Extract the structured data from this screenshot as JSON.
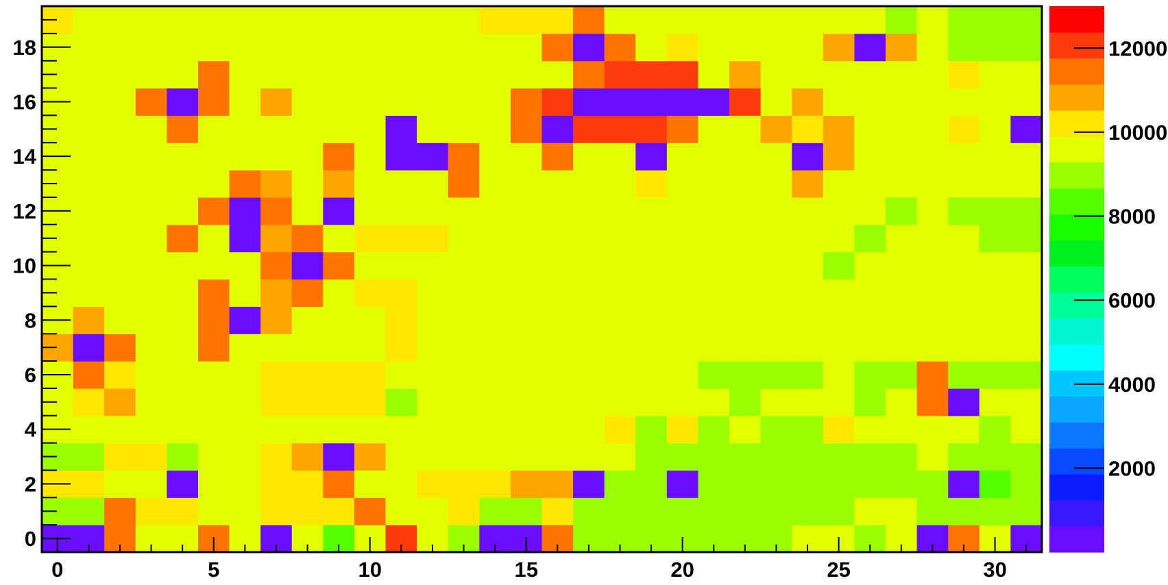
{
  "chart_data": {
    "type": "heatmap",
    "title": "",
    "xlabel": "",
    "ylabel": "",
    "xlim": [
      -0.5,
      31.5
    ],
    "ylim": [
      -0.5,
      19.5
    ],
    "x_ticks": [
      0,
      5,
      10,
      15,
      20,
      25,
      30
    ],
    "y_ticks": [
      0,
      2,
      4,
      6,
      8,
      10,
      12,
      14,
      16,
      18
    ],
    "colorbar": {
      "range": [
        0,
        13000
      ],
      "ticks": [
        2000,
        4000,
        6000,
        8000,
        10000,
        12000
      ],
      "palette": [
        "#6a0dff",
        "#3a18ff",
        "#0a1eff",
        "#0a4aff",
        "#0a78ff",
        "#0aa6ff",
        "#00c8ff",
        "#00ffff",
        "#00f7d2",
        "#00ff9a",
        "#00ff5a",
        "#00f020",
        "#19ff00",
        "#55ff00",
        "#99ff00",
        "#e2ff00",
        "#ffe700",
        "#ffa500",
        "#ff7400",
        "#ff3b0d",
        "#ff0000"
      ]
    },
    "grid": false,
    "legend": "none",
    "cells_by_row": [
      "ccdjjrjcifjsjhccdgggggggiigecdicca",
      "hhrkkjjkkkriikggkhhhhhhhhhiiggggpa",
      "kkjjcjjkkriikkkqqcggcggggggggafggp",
      "ggkkgjjkqcqjjjjjjjjgghhhhhggigggbsh",
      "jjijjjjjioijjjjjjjkhkhjggkjjjjhihjhs",
      "jkqjjjjkkkkgjjjjjjjjjihjjjgjrcjjhhfz",
      "jrkjjjjkkkkjjjjjjjjjjhhhhjghrhhhhhhd",
      "qcrjjrjjjjjkjjjjjjjjjjjjjjjjjjjjjfhh",
      "jqjjjrcqjjjkjjjjjjjjjjjjjjjjjjjjjjjh",
      "jjjjjrjqrjkkjjjjjjjjjjjjjjjjjjjjjjjs",
      "jjjjjjjrcrjjjjjjjjjjjjjjjhjjjjjjjjjj",
      "jjjjrjcqrjkkkjjjjjjjjjjjjjhjjjhhhjjj",
      "jjjjjrcrjcjjjjjjjjjjjjjjjjjhjhhhhhhf",
      "jjjjjjrqjqjjjrjjjjjkjjjjqjjjjjjjjhhh",
      "jjjjjjjjjrjccrjjrjjcjjjjcqjjjjjjkhhh",
      "jjjjrjjjjjjcjjjrcsssrjjqkqjjjkjcjchh",
      "jjjrcrjqjjjjjjjrscccccsjqjjjjjjjjjhf",
      "jjjjjrjjjjjjjjjjjrsssjqjjjjjjkjjjggs",
      "jjjjjjjjjjjjjjjjrcrjkjjjjqcqjhhhhhjh",
      "kjjjjjjjjjjjjjkkkrjjjjjjjjjhjhhhhhhs"
    ]
  }
}
